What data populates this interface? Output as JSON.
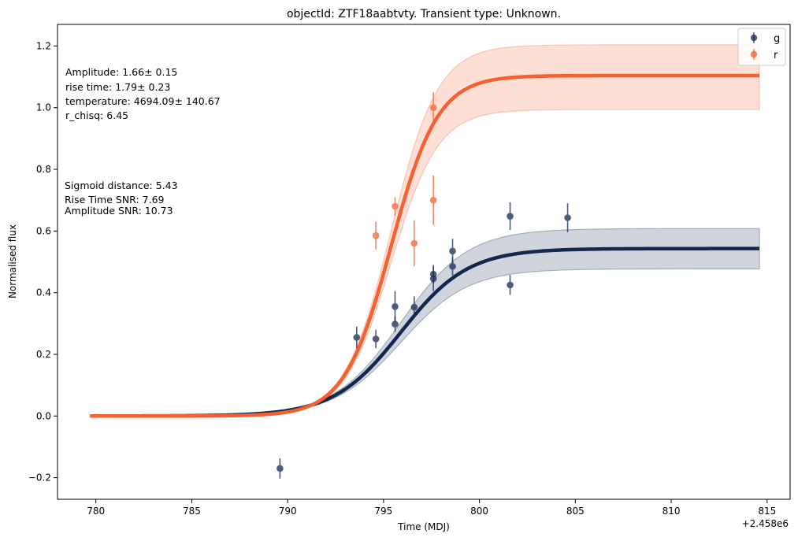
{
  "chart_data": {
    "type": "scatter",
    "title": "objectId: ZTF18aabtvty. Transient type: Unknown.",
    "xlabel": "Time (MDJ)",
    "ylabel": "Normalised flux",
    "x_offset_label": "+2.458e6",
    "xlim": [
      778.0,
      816.2
    ],
    "ylim": [
      -0.27,
      1.27
    ],
    "xticks": [
      780,
      785,
      790,
      795,
      800,
      805,
      810,
      815
    ],
    "xtick_labels": [
      "780",
      "785",
      "790",
      "795",
      "800",
      "805",
      "810",
      "815"
    ],
    "yticks": [
      -0.2,
      0.0,
      0.2,
      0.4,
      0.6,
      0.8,
      1.0,
      1.2
    ],
    "ytick_labels": [
      "−0.2",
      "0.0",
      "0.2",
      "0.4",
      "0.6",
      "0.8",
      "1.0",
      "1.2"
    ],
    "grid": false,
    "legend_position": "top-right",
    "annotations_top": [
      "Amplitude: 1.66± 0.15",
      "rise time: 1.79± 0.23",
      "temperature: 4694.09± 140.67",
      "r_chisq: 6.45"
    ],
    "annotations_mid": [
      "Sigmoid distance: 5.43",
      "Rise Time SNR: 7.69",
      "Amplitude SNR: 10.73"
    ],
    "series": [
      {
        "name": "g",
        "color": "#14284f",
        "fit": {
          "amplitude": 0.543,
          "midpoint": 795.9,
          "rise": 1.75,
          "band_low": 0.477,
          "band_high": 0.608,
          "x_start": 779.7,
          "x_end": 814.6
        },
        "points": [
          {
            "x": 789.6,
            "y": -0.17,
            "err": 0.033
          },
          {
            "x": 793.6,
            "y": 0.255,
            "err": 0.035
          },
          {
            "x": 794.6,
            "y": 0.25,
            "err": 0.03
          },
          {
            "x": 795.6,
            "y": 0.355,
            "err": 0.05
          },
          {
            "x": 795.6,
            "y": 0.298,
            "err": 0.025
          },
          {
            "x": 796.6,
            "y": 0.353,
            "err": 0.035
          },
          {
            "x": 797.6,
            "y": 0.46,
            "err": 0.03
          },
          {
            "x": 797.6,
            "y": 0.445,
            "err": 0.04
          },
          {
            "x": 798.6,
            "y": 0.535,
            "err": 0.04
          },
          {
            "x": 798.6,
            "y": 0.485,
            "err": 0.03
          },
          {
            "x": 801.6,
            "y": 0.648,
            "err": 0.045
          },
          {
            "x": 801.6,
            "y": 0.425,
            "err": 0.032
          },
          {
            "x": 804.6,
            "y": 0.643,
            "err": 0.047
          }
        ]
      },
      {
        "name": "r",
        "color": "#f4602f",
        "fit": {
          "amplitude": 1.104,
          "midpoint": 795.4,
          "rise": 1.22,
          "band_low": 0.994,
          "band_high": 1.204,
          "x_start": 779.7,
          "x_end": 814.6
        },
        "points": [
          {
            "x": 794.6,
            "y": 0.585,
            "err": 0.045
          },
          {
            "x": 795.6,
            "y": 0.68,
            "err": 0.03
          },
          {
            "x": 796.6,
            "y": 0.56,
            "err": 0.075
          },
          {
            "x": 797.6,
            "y": 1.0,
            "err": 0.05
          },
          {
            "x": 797.6,
            "y": 0.7,
            "err": 0.08
          }
        ]
      }
    ]
  }
}
